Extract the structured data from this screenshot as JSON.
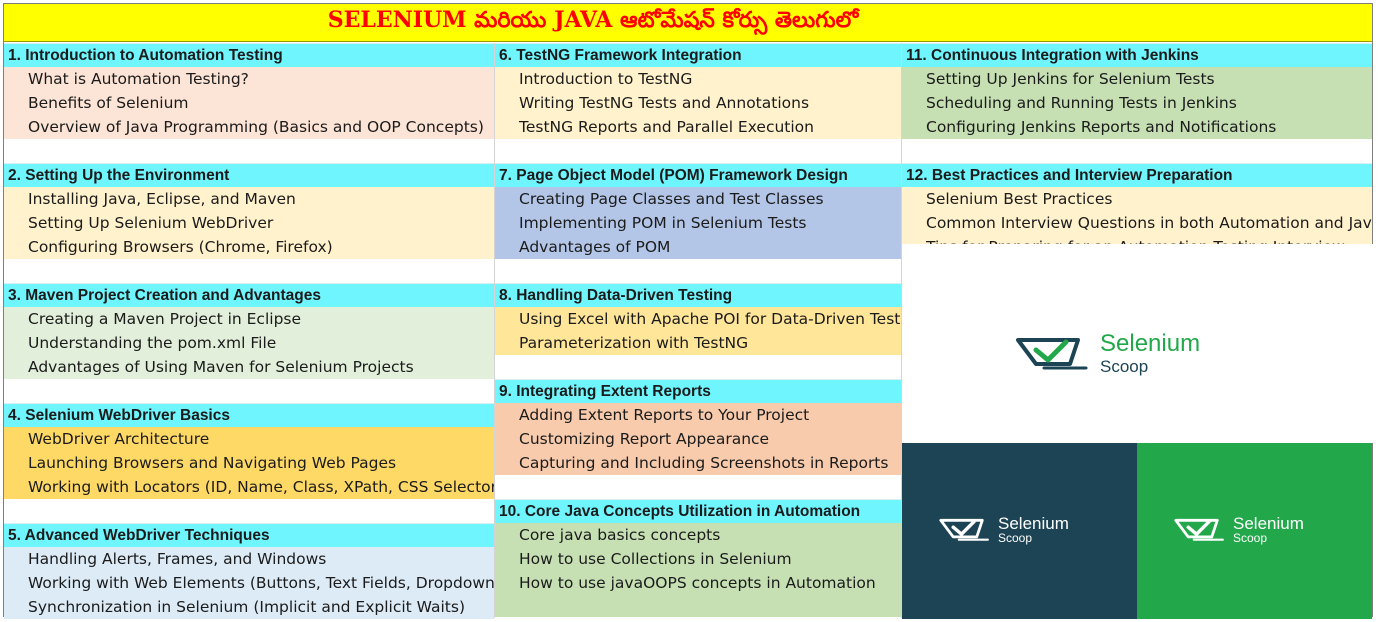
{
  "title": "SELENIUM మరియు JAVA ఆటోమేషన్ కోర్సు  తెలుగులో",
  "colors": {
    "title_bg": "#ffff00",
    "title_text": "#ff0000",
    "header_bg": "#6ff5fd",
    "peach": "#fce4d6",
    "cream": "#fff2cc",
    "light_green": "#e2efda",
    "gold": "#ffd966",
    "light_blue": "#ddebf7",
    "blue": "#b4c6e7",
    "salmon": "#f8cbad",
    "green": "#c6e0b4",
    "tile_dark": "#1d4454",
    "tile_green": "#22a84a"
  },
  "columns": [
    {
      "sections": [
        {
          "header": "1. Introduction to Automation Testing",
          "items": [
            "What is Automation Testing?",
            "Benefits of Selenium",
            "Overview of Java Programming (Basics and OOP Concepts)"
          ]
        },
        {
          "header": "2. Setting Up the Environment",
          "items": [
            "Installing Java, Eclipse, and Maven",
            "Setting Up Selenium WebDriver",
            "Configuring Browsers (Chrome, Firefox)"
          ]
        },
        {
          "header": "3. Maven Project Creation and Advantages",
          "items": [
            "Creating a Maven Project in Eclipse",
            "Understanding the pom.xml File",
            "Advantages of Using Maven for Selenium Projects"
          ]
        },
        {
          "header": "4. Selenium WebDriver Basics",
          "items": [
            "WebDriver Architecture",
            "Launching Browsers and Navigating Web Pages",
            "Working with Locators (ID, Name, Class, XPath, CSS Selectors)"
          ]
        },
        {
          "header": "5. Advanced WebDriver Techniques",
          "items": [
            "Handling Alerts, Frames, and Windows",
            "Working with Web Elements (Buttons, Text Fields, Dropdowns)",
            "Synchronization in Selenium (Implicit and Explicit Waits)"
          ]
        }
      ]
    },
    {
      "sections": [
        {
          "header": "6. TestNG Framework Integration",
          "items": [
            "Introduction to TestNG",
            "Writing TestNG Tests and Annotations",
            "TestNG Reports and Parallel Execution"
          ]
        },
        {
          "header": "7. Page Object Model (POM) Framework Design",
          "items": [
            "Creating Page Classes and Test Classes",
            "Implementing POM in Selenium Tests",
            "Advantages of POM"
          ]
        },
        {
          "header": "8. Handling Data-Driven Testing",
          "items": [
            "Using Excel with Apache POI for Data-Driven Tests",
            "Parameterization with TestNG"
          ]
        },
        {
          "header": "9. Integrating Extent Reports",
          "items": [
            "Adding Extent Reports to Your Project",
            "Customizing Report Appearance",
            "Capturing and Including Screenshots in Reports"
          ]
        },
        {
          "header": "10. Core Java Concepts Utilization in Automation",
          "items": [
            "Core java basics concepts",
            "How to use Collections in Selenium",
            "How to use javaOOPS concepts in Automation"
          ]
        }
      ]
    },
    {
      "sections": [
        {
          "header": "11. Continuous Integration with Jenkins",
          "items": [
            "Setting Up Jenkins for Selenium Tests",
            "Scheduling and Running Tests in Jenkins",
            "Configuring Jenkins Reports and Notifications"
          ]
        },
        {
          "header": "12. Best Practices and Interview Preparation",
          "items": [
            "Selenium Best Practices",
            "Common Interview Questions in both Automation and Java",
            "Tips for Preparing for an Automation Testing Interview"
          ]
        }
      ]
    }
  ],
  "logo": {
    "word1": "Selenium",
    "word2": "Scoop"
  }
}
